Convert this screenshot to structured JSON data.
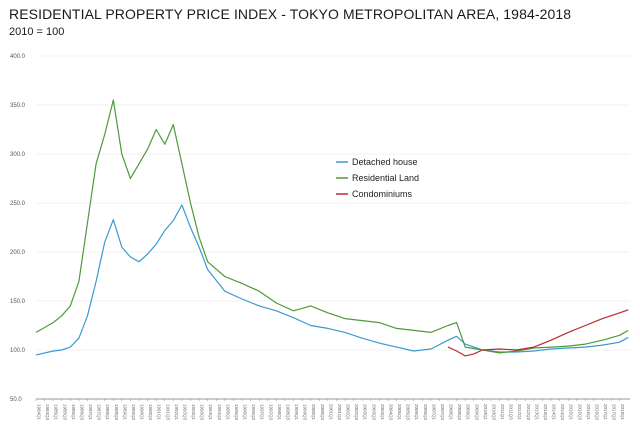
{
  "chart_data": {
    "type": "line",
    "title": "RESIDENTIAL PROPERTY PRICE INDEX - TOKYO METROPOLITAN AREA, 1984-2018",
    "subtitle": "2010 = 100",
    "xlabel": "",
    "ylabel": "",
    "xlim": [
      1984,
      2018.6
    ],
    "ylim": [
      50,
      400
    ],
    "y_ticks": [
      "50.0",
      "100.0",
      "150.0",
      "200.0",
      "250.0",
      "300.0",
      "350.0",
      "400.0"
    ],
    "grid": true,
    "legend_position": "center-right",
    "series": [
      {
        "name": "Detached house",
        "color": "#3a9ad0",
        "x": [
          1984.0,
          1985.0,
          1985.5,
          1986.0,
          1986.5,
          1987.0,
          1987.5,
          1988.0,
          1988.5,
          1989.0,
          1989.5,
          1990.0,
          1990.5,
          1991.0,
          1991.5,
          1992.0,
          1992.5,
          1993.0,
          1993.5,
          1994.0,
          1995.0,
          1996.0,
          1997.0,
          1998.0,
          1999.0,
          2000.0,
          2001.0,
          2002.0,
          2003.0,
          2004.0,
          2005.0,
          2006.0,
          2007.0,
          2008.0,
          2008.5,
          2009.0,
          2010.0,
          2011.0,
          2012.0,
          2013.0,
          2014.0,
          2015.0,
          2016.0,
          2017.0,
          2018.0,
          2018.5
        ],
        "y": [
          95,
          99,
          100,
          103,
          112,
          135,
          170,
          210,
          233,
          205,
          195,
          190,
          198,
          208,
          222,
          232,
          248,
          225,
          205,
          182,
          160,
          152,
          145,
          140,
          133,
          125,
          122,
          118,
          112,
          107,
          103,
          99,
          101,
          110,
          114,
          106,
          100,
          98,
          98,
          99,
          101,
          102,
          103,
          105,
          108,
          113
        ]
      },
      {
        "name": "Residential Land",
        "color": "#4e9a3a",
        "x": [
          1984.0,
          1985.0,
          1985.5,
          1986.0,
          1986.5,
          1987.0,
          1987.5,
          1988.0,
          1988.5,
          1989.0,
          1989.5,
          1990.0,
          1990.5,
          1991.0,
          1991.5,
          1992.0,
          1992.5,
          1993.0,
          1993.5,
          1994.0,
          1995.0,
          1996.0,
          1997.0,
          1998.0,
          1999.0,
          2000.0,
          2001.0,
          2002.0,
          2003.0,
          2004.0,
          2005.0,
          2006.0,
          2007.0,
          2008.0,
          2008.5,
          2009.0,
          2010.0,
          2011.0,
          2012.0,
          2013.0,
          2014.0,
          2015.0,
          2016.0,
          2017.0,
          2018.0,
          2018.5
        ],
        "y": [
          118,
          128,
          135,
          145,
          170,
          230,
          290,
          320,
          355,
          300,
          275,
          290,
          305,
          325,
          310,
          330,
          290,
          250,
          215,
          190,
          175,
          168,
          160,
          148,
          140,
          145,
          138,
          132,
          130,
          128,
          122,
          120,
          118,
          125,
          128,
          103,
          100,
          97,
          99,
          102,
          103,
          104,
          106,
          110,
          115,
          120
        ]
      },
      {
        "name": "Condominiums",
        "color": "#c0282a",
        "x": [
          2008.0,
          2008.5,
          2009.0,
          2009.5,
          2010.0,
          2011.0,
          2012.0,
          2013.0,
          2014.0,
          2015.0,
          2016.0,
          2017.0,
          2018.0,
          2018.5
        ],
        "y": [
          103,
          99,
          94,
          96,
          100,
          101,
          100,
          103,
          110,
          118,
          125,
          132,
          138,
          141
        ]
      }
    ],
    "x_tick_labels": [
      "1984Q1",
      "1984Q3",
      "1985Q1",
      "1985Q3",
      "1986Q1",
      "1986Q3",
      "1987Q1",
      "1987Q3",
      "1988Q1",
      "1988Q3",
      "1989Q1",
      "1989Q3",
      "1990Q1",
      "1990Q3",
      "1991Q1",
      "1991Q3",
      "1992Q1",
      "1992Q3",
      "1993Q1",
      "1993Q3",
      "1994Q1",
      "1994Q3",
      "1995Q1",
      "1995Q3",
      "1996Q1",
      "1996Q3",
      "1997Q1",
      "1997Q3",
      "1998Q1",
      "1998Q3",
      "1999Q1",
      "1999Q3",
      "2000Q1",
      "2000Q3",
      "2001Q1",
      "2001Q3",
      "2002Q1",
      "2002Q3",
      "2003Q1",
      "2003Q3",
      "2004Q1",
      "2004Q3",
      "2005Q1",
      "2005Q3",
      "2006Q1",
      "2006Q3",
      "2007Q1",
      "2007Q3",
      "2008Q1",
      "2008Q3",
      "2009Q1",
      "2009Q3",
      "2010Q1",
      "2010Q3",
      "2011Q1",
      "2011Q3",
      "2012Q1",
      "2012Q3",
      "2013Q1",
      "2013Q3",
      "2014Q1",
      "2014Q3",
      "2015Q1",
      "2015Q3",
      "2016Q1",
      "2016Q3",
      "2017Q1",
      "2017Q3",
      "2018Q1"
    ]
  }
}
